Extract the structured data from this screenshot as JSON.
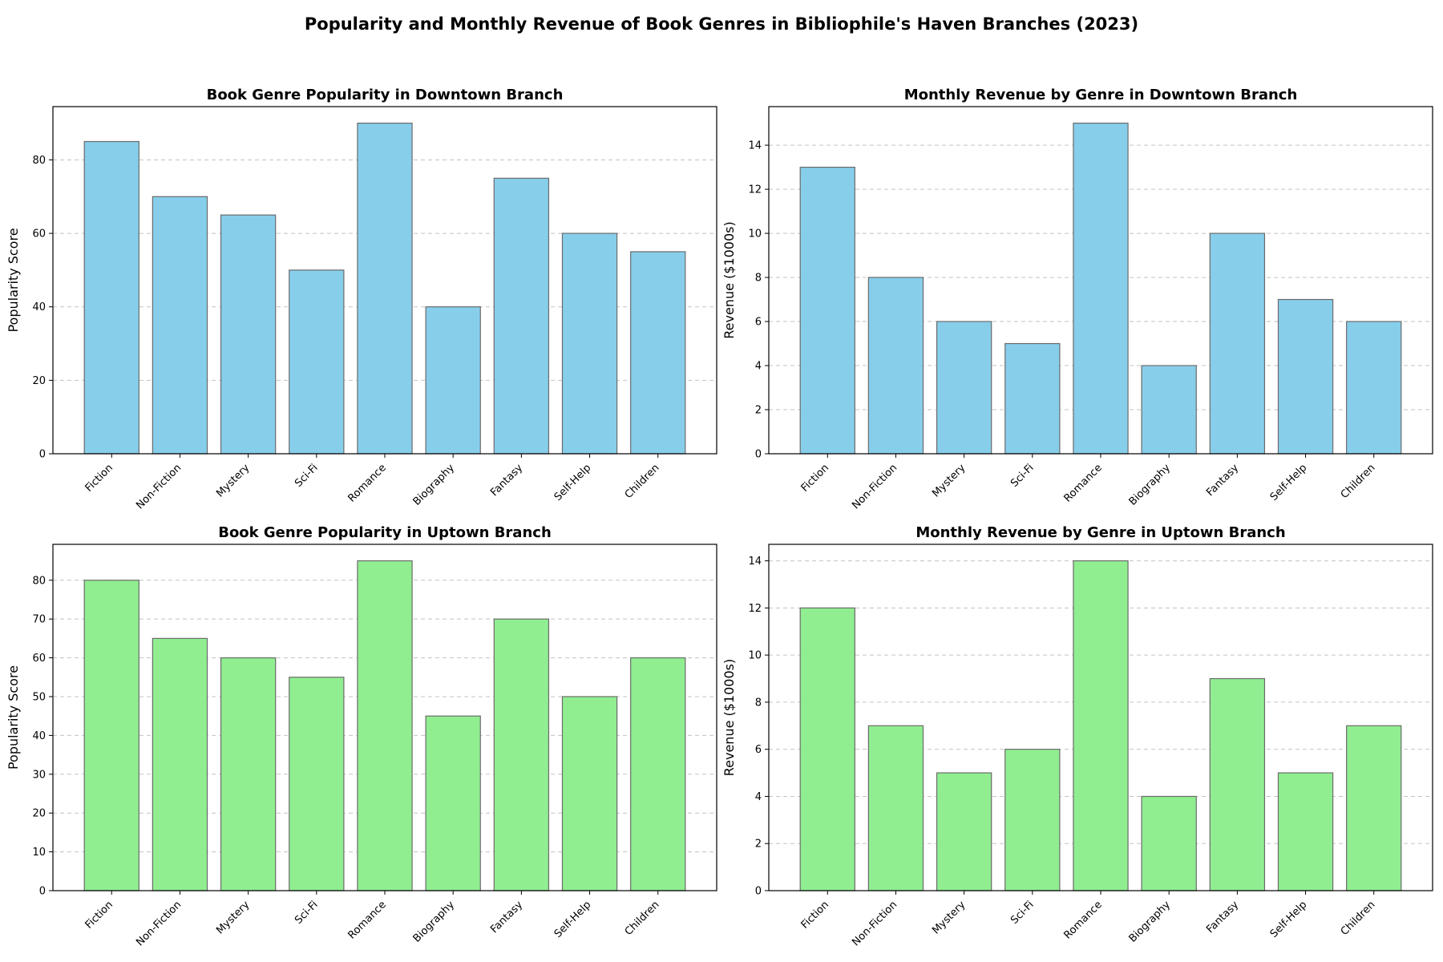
{
  "figure": {
    "title": "Popularity and Monthly Revenue of Book Genres in Bibliophile's Haven Branches (2023)"
  },
  "chart_data": [
    {
      "type": "bar",
      "title": "Book Genre Popularity in Downtown Branch",
      "xlabel": "",
      "ylabel": "Popularity Score",
      "categories": [
        "Fiction",
        "Non-Fiction",
        "Mystery",
        "Sci-Fi",
        "Romance",
        "Biography",
        "Fantasy",
        "Self-Help",
        "Children"
      ],
      "values": [
        85,
        70,
        65,
        50,
        90,
        40,
        75,
        60,
        55
      ],
      "ylim": [
        0,
        94.5
      ],
      "yticks": [
        0,
        20,
        40,
        60,
        80
      ],
      "color": "#87CEEB",
      "grid": "y"
    },
    {
      "type": "bar",
      "title": "Monthly Revenue by Genre in Downtown Branch",
      "xlabel": "",
      "ylabel": "Revenue ($1000s)",
      "categories": [
        "Fiction",
        "Non-Fiction",
        "Mystery",
        "Sci-Fi",
        "Romance",
        "Biography",
        "Fantasy",
        "Self-Help",
        "Children"
      ],
      "values": [
        13,
        8,
        6,
        5,
        15,
        4,
        10,
        7,
        6
      ],
      "ylim": [
        0,
        15.75
      ],
      "yticks": [
        0,
        2,
        4,
        6,
        8,
        10,
        12,
        14
      ],
      "color": "#87CEEB",
      "grid": "y"
    },
    {
      "type": "bar",
      "title": "Book Genre Popularity in Uptown Branch",
      "xlabel": "",
      "ylabel": "Popularity Score",
      "categories": [
        "Fiction",
        "Non-Fiction",
        "Mystery",
        "Sci-Fi",
        "Romance",
        "Biography",
        "Fantasy",
        "Self-Help",
        "Children"
      ],
      "values": [
        80,
        65,
        60,
        55,
        85,
        45,
        70,
        50,
        60
      ],
      "ylim": [
        0,
        89.25
      ],
      "yticks": [
        0,
        10,
        20,
        30,
        40,
        50,
        60,
        70,
        80
      ],
      "color": "#90EE90",
      "grid": "y"
    },
    {
      "type": "bar",
      "title": "Monthly Revenue by Genre in Uptown Branch",
      "xlabel": "",
      "ylabel": "Revenue ($1000s)",
      "categories": [
        "Fiction",
        "Non-Fiction",
        "Mystery",
        "Sci-Fi",
        "Romance",
        "Biography",
        "Fantasy",
        "Self-Help",
        "Children"
      ],
      "values": [
        12,
        7,
        5,
        6,
        14,
        4,
        9,
        5,
        7
      ],
      "ylim": [
        0,
        14.7
      ],
      "yticks": [
        0,
        2,
        4,
        6,
        8,
        10,
        12,
        14
      ],
      "color": "#90EE90",
      "grid": "y"
    }
  ]
}
